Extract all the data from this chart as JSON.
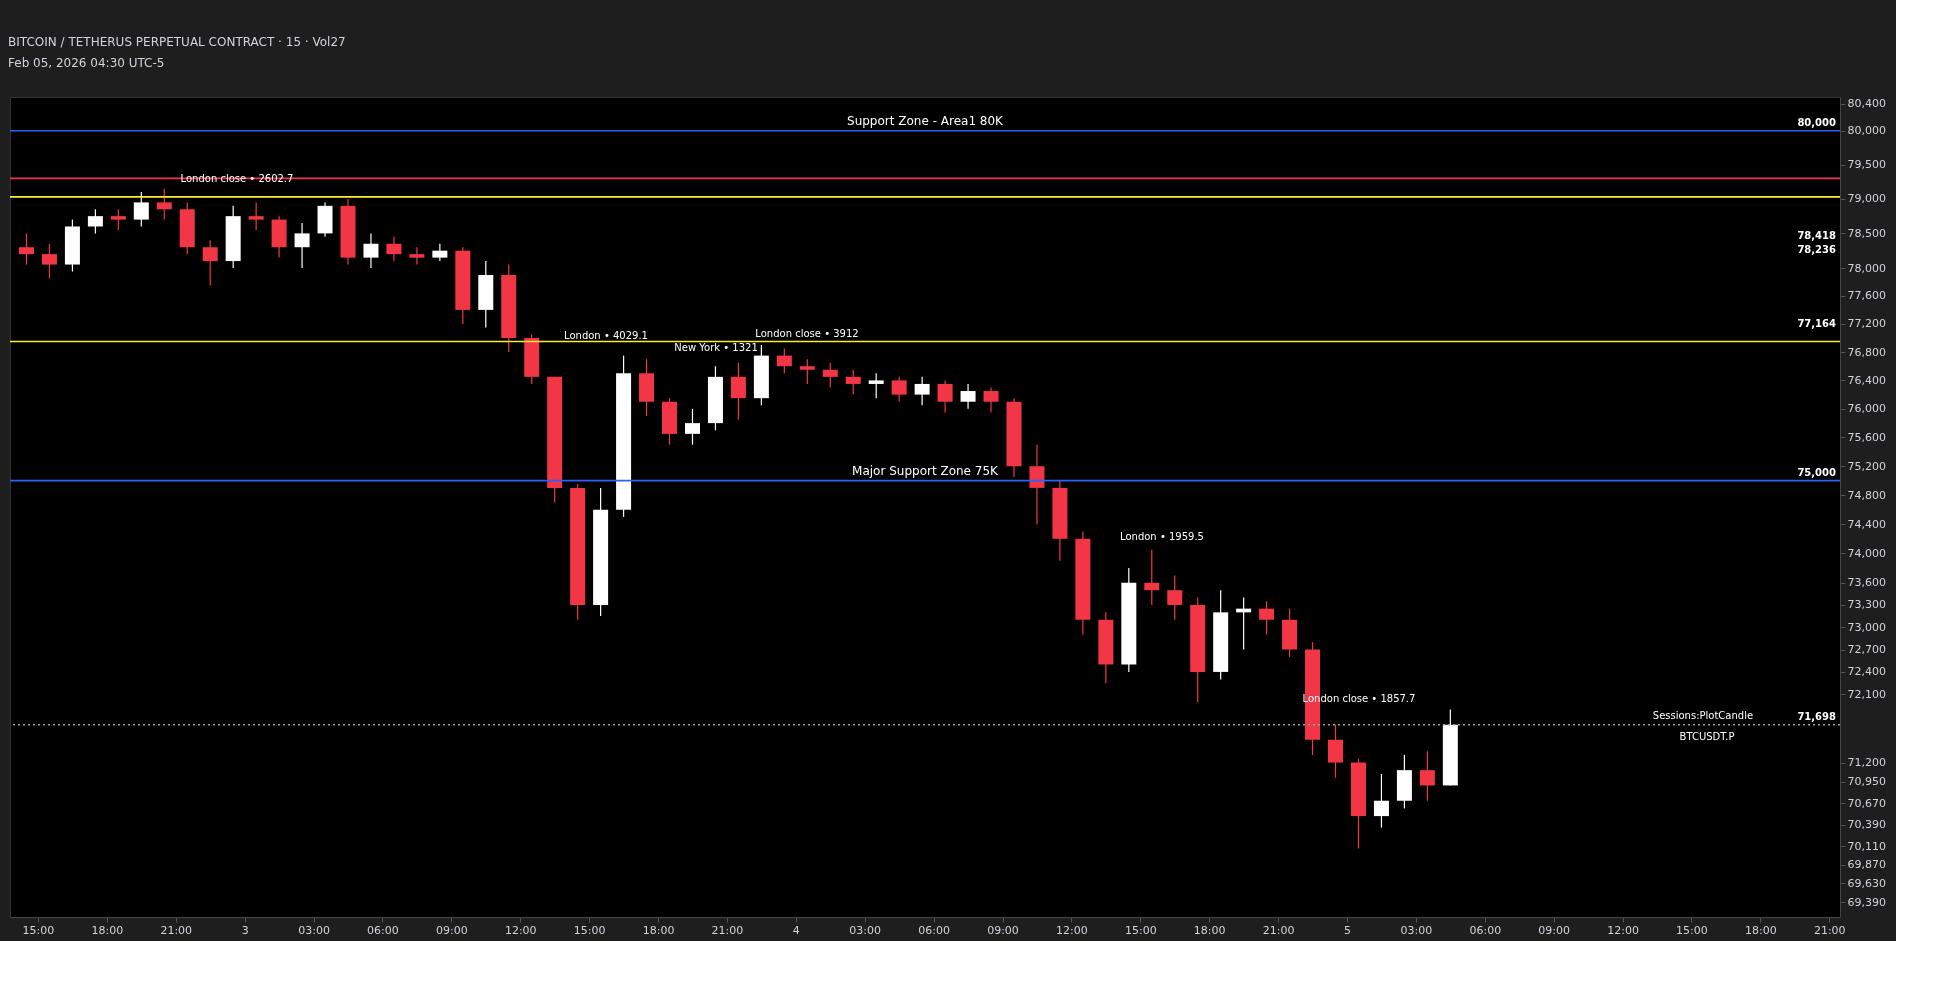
{
  "chart_data": {
    "type": "candlestick",
    "title": "BITCOIN / TETHERUS PERPETUAL CONTRACT · 15 · Vol27",
    "x": [
      "2026-02-02T14:30",
      "2026-02-02T15:30",
      "2026-02-02T16:30",
      "2026-02-02T17:30",
      "2026-02-02T18:30",
      "2026-02-02T19:30",
      "2026-02-02T20:30",
      "2026-02-02T21:30",
      "2026-02-02T22:30",
      "2026-02-02T23:30",
      "2026-02-03T00:30",
      "2026-02-03T01:30",
      "2026-02-03T02:30",
      "2026-02-03T03:30",
      "2026-02-03T04:30",
      "2026-02-03T05:30",
      "2026-02-03T06:30",
      "2026-02-03T07:30",
      "2026-02-03T08:30",
      "2026-02-03T09:30",
      "2026-02-03T10:30",
      "2026-02-03T11:30",
      "2026-02-03T12:30",
      "2026-02-03T13:30",
      "2026-02-03T14:30",
      "2026-02-03T15:30",
      "2026-02-03T16:30",
      "2026-02-03T17:30",
      "2026-02-03T18:30",
      "2026-02-03T19:30",
      "2026-02-03T20:30",
      "2026-02-03T21:30",
      "2026-02-03T22:30",
      "2026-02-03T23:30",
      "2026-02-04T00:30",
      "2026-02-04T01:30",
      "2026-02-04T02:30",
      "2026-02-04T03:30",
      "2026-02-04T04:30",
      "2026-02-04T05:30",
      "2026-02-04T06:30",
      "2026-02-04T07:30",
      "2026-02-04T08:30",
      "2026-02-04T09:30",
      "2026-02-04T10:30",
      "2026-02-04T11:30",
      "2026-02-04T12:30",
      "2026-02-04T13:30",
      "2026-02-04T14:30",
      "2026-02-04T15:30",
      "2026-02-04T16:30",
      "2026-02-04T17:30",
      "2026-02-04T18:30",
      "2026-02-04T19:30",
      "2026-02-04T20:30",
      "2026-02-04T21:30",
      "2026-02-04T22:30",
      "2026-02-04T23:30",
      "2026-02-05T00:30",
      "2026-02-05T01:30",
      "2026-02-05T02:30",
      "2026-02-05T03:30",
      "2026-02-05T04:30"
    ],
    "ohlc": [
      [
        78300,
        78500,
        78050,
        78200
      ],
      [
        78200,
        78350,
        77850,
        78050
      ],
      [
        78050,
        78700,
        77950,
        78600
      ],
      [
        78600,
        78850,
        78500,
        78750
      ],
      [
        78750,
        78850,
        78550,
        78700
      ],
      [
        78700,
        79100,
        78600,
        78950
      ],
      [
        78950,
        79150,
        78700,
        78850
      ],
      [
        78850,
        78950,
        78200,
        78300
      ],
      [
        78300,
        78400,
        77750,
        78100
      ],
      [
        78100,
        78900,
        78000,
        78750
      ],
      [
        78750,
        78950,
        78550,
        78700
      ],
      [
        78700,
        78750,
        78150,
        78300
      ],
      [
        78300,
        78650,
        78000,
        78500
      ],
      [
        78500,
        78950,
        78450,
        78900
      ],
      [
        78900,
        79000,
        78050,
        78150
      ],
      [
        78150,
        78500,
        78000,
        78350
      ],
      [
        78350,
        78450,
        78100,
        78200
      ],
      [
        78200,
        78300,
        78050,
        78150
      ],
      [
        78150,
        78350,
        78100,
        78250
      ],
      [
        78250,
        78300,
        77200,
        77400
      ],
      [
        77400,
        78100,
        77150,
        77900
      ],
      [
        77900,
        78050,
        76800,
        77000
      ],
      [
        77000,
        77050,
        76350,
        76450
      ],
      [
        76450,
        76450,
        74700,
        74900
      ],
      [
        74900,
        74950,
        73100,
        73300
      ],
      [
        73300,
        74900,
        73150,
        74600
      ],
      [
        74600,
        76750,
        74500,
        76500
      ],
      [
        76500,
        76700,
        75900,
        76100
      ],
      [
        76100,
        76150,
        75500,
        75650
      ],
      [
        75650,
        76000,
        75500,
        75800
      ],
      [
        75800,
        76600,
        75700,
        76450
      ],
      [
        76450,
        76650,
        75850,
        76150
      ],
      [
        76150,
        76900,
        76050,
        76750
      ],
      [
        76750,
        76850,
        76500,
        76600
      ],
      [
        76600,
        76700,
        76350,
        76550
      ],
      [
        76550,
        76650,
        76300,
        76450
      ],
      [
        76450,
        76550,
        76200,
        76350
      ],
      [
        76350,
        76500,
        76150,
        76400
      ],
      [
        76400,
        76450,
        76100,
        76200
      ],
      [
        76200,
        76450,
        76050,
        76350
      ],
      [
        76350,
        76400,
        75950,
        76100
      ],
      [
        76100,
        76350,
        76000,
        76250
      ],
      [
        76250,
        76300,
        75950,
        76100
      ],
      [
        76100,
        76150,
        75050,
        75200
      ],
      [
        75200,
        75500,
        74400,
        74900
      ],
      [
        74900,
        75000,
        73900,
        74200
      ],
      [
        74200,
        74300,
        72900,
        73100
      ],
      [
        73100,
        73200,
        72250,
        72500
      ],
      [
        72500,
        73800,
        72400,
        73600
      ],
      [
        73600,
        74050,
        73300,
        73500
      ],
      [
        73500,
        73700,
        73100,
        73300
      ],
      [
        73300,
        73400,
        72000,
        72400
      ],
      [
        72400,
        73500,
        72300,
        73200
      ],
      [
        73200,
        73400,
        72700,
        73250
      ],
      [
        73250,
        73350,
        72900,
        73100
      ],
      [
        73100,
        73250,
        72600,
        72700
      ],
      [
        72700,
        72800,
        71300,
        71500
      ],
      [
        71500,
        71700,
        71000,
        71200
      ],
      [
        71200,
        71250,
        70080,
        70500
      ],
      [
        70500,
        71050,
        70350,
        70700
      ],
      [
        70700,
        71300,
        70600,
        71100
      ],
      [
        71100,
        71350,
        70700,
        70900
      ],
      [
        70900,
        71900,
        70900,
        71698
      ]
    ],
    "xlim": [
      "2026-02-02T14:00",
      "2026-02-05T21:15"
    ],
    "xticks": [
      {
        "value": "2026-02-02T15:00",
        "label": "15:00"
      },
      {
        "value": "2026-02-02T18:00",
        "label": "18:00"
      },
      {
        "value": "2026-02-02T21:00",
        "label": "21:00"
      },
      {
        "value": "2026-02-03T00:00",
        "label": "3"
      },
      {
        "value": "2026-02-03T03:00",
        "label": "03:00"
      },
      {
        "value": "2026-02-03T06:00",
        "label": "06:00"
      },
      {
        "value": "2026-02-03T09:00",
        "label": "09:00"
      },
      {
        "value": "2026-02-03T12:00",
        "label": "12:00"
      },
      {
        "value": "2026-02-03T15:00",
        "label": "15:00"
      },
      {
        "value": "2026-02-03T18:00",
        "label": "18:00"
      },
      {
        "value": "2026-02-03T21:00",
        "label": "21:00"
      },
      {
        "value": "2026-02-04T00:00",
        "label": "4"
      },
      {
        "value": "2026-02-04T03:00",
        "label": "03:00"
      },
      {
        "value": "2026-02-04T06:00",
        "label": "06:00"
      },
      {
        "value": "2026-02-04T09:00",
        "label": "09:00"
      },
      {
        "value": "2026-02-04T12:00",
        "label": "12:00"
      },
      {
        "value": "2026-02-04T15:00",
        "label": "15:00"
      },
      {
        "value": "2026-02-04T18:00",
        "label": "18:00"
      },
      {
        "value": "2026-02-04T21:00",
        "label": "21:00"
      },
      {
        "value": "2026-02-05T00:00",
        "label": "5"
      },
      {
        "value": "2026-02-05T03:00",
        "label": "03:00"
      },
      {
        "value": "2026-02-05T06:00",
        "label": "06:00"
      },
      {
        "value": "2026-02-05T09:00",
        "label": "09:00"
      },
      {
        "value": "2026-02-05T12:00",
        "label": "12:00"
      },
      {
        "value": "2026-02-05T15:00",
        "label": "15:00"
      },
      {
        "value": "2026-02-05T18:00",
        "label": "18:00"
      },
      {
        "value": "2026-02-05T21:00",
        "label": "21:00"
      }
    ],
    "ylim": [
      69200,
      80500
    ],
    "yticks": [
      {
        "value": 80400,
        "label": "80,400"
      },
      {
        "value": 80000,
        "label": "80,000"
      },
      {
        "value": 79500,
        "label": "79,500"
      },
      {
        "value": 79000,
        "label": "79,000"
      },
      {
        "value": 78500,
        "label": "78,500"
      },
      {
        "value": 78000,
        "label": "78,000"
      },
      {
        "value": 77600,
        "label": "77,600"
      },
      {
        "value": 77200,
        "label": "77,200"
      },
      {
        "value": 76800,
        "label": "76,800"
      },
      {
        "value": 76400,
        "label": "76,400"
      },
      {
        "value": 76000,
        "label": "76,000"
      },
      {
        "value": 75600,
        "label": "75,600"
      },
      {
        "value": 75200,
        "label": "75,200"
      },
      {
        "value": 74800,
        "label": "74,800"
      },
      {
        "value": 74400,
        "label": "74,400"
      },
      {
        "value": 74000,
        "label": "74,000"
      },
      {
        "value": 73600,
        "label": "73,600"
      },
      {
        "value": 73300,
        "label": "73,300"
      },
      {
        "value": 73000,
        "label": "73,000"
      },
      {
        "value": 72700,
        "label": "72,700"
      },
      {
        "value": 72400,
        "label": "72,400"
      },
      {
        "value": 72100,
        "label": "72,100"
      },
      {
        "value": 71200,
        "label": "71,200"
      },
      {
        "value": 70950,
        "label": "70,950"
      },
      {
        "value": 70670,
        "label": "70,670"
      },
      {
        "value": 70390,
        "label": "70,390"
      },
      {
        "value": 70110,
        "label": "70,110"
      },
      {
        "value": 69870,
        "label": "69,870"
      },
      {
        "value": 69630,
        "label": "69,630"
      },
      {
        "value": 69390,
        "label": "69,390"
      }
    ],
    "log": "y",
    "grid": false,
    "ref_lines": [
      {
        "axis": "y",
        "value": 80000,
        "label": "Support Zone - Area1 80K",
        "color": "#2962ff",
        "line_style": "solid"
      },
      {
        "axis": "y",
        "value": 79300,
        "color": "#f23645",
        "line_style": "solid"
      },
      {
        "axis": "y",
        "value": 79030,
        "color": "#ffeb3b",
        "line_style": "solid"
      },
      {
        "axis": "y",
        "value": 76950,
        "color": "#ffeb3b",
        "line_style": "solid"
      },
      {
        "axis": "y",
        "value": 75000,
        "label": "Major Support Zone 75K",
        "color": "#2962ff",
        "line_style": "solid"
      },
      {
        "axis": "y",
        "value": 71698,
        "color": "#9e9e9e",
        "line_style": "dotted"
      }
    ],
    "annotations": [
      "Feb 05, 2026 04:30 UTC-5",
      "London close • 2602.7",
      "London • 4029.1",
      "New York • 1321",
      "London close • 3912",
      "London • 1959.5",
      "London close • 1857.7",
      {
        "text": "Sessions:PlotCandle",
        "x": "2026-02-05T15:30",
        "y": 71698
      },
      "BTCUSDT.P",
      {
        "text": "80,000",
        "y": 80000
      },
      "78,418",
      "78,236",
      "77,164",
      {
        "text": "75,000",
        "y": 75000
      },
      {
        "text": "71,698",
        "y": 71698
      }
    ]
  }
}
